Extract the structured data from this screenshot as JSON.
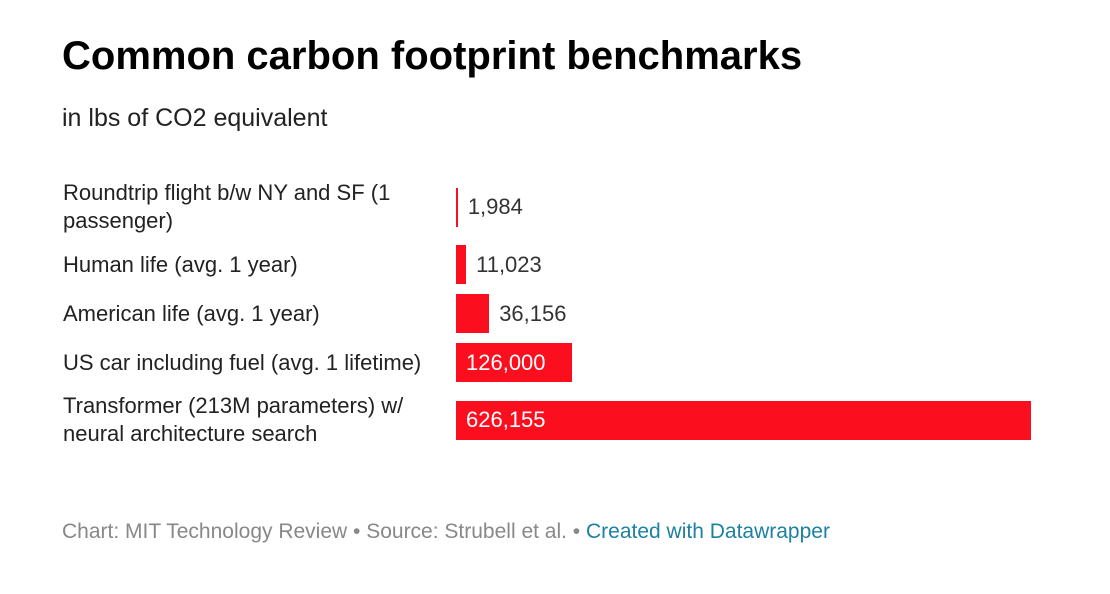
{
  "chart_data": {
    "type": "bar",
    "orientation": "horizontal",
    "title": "Common carbon footprint benchmarks",
    "subtitle": "in lbs of CO2 equivalent",
    "categories": [
      "Roundtrip flight b/w NY and SF (1 passenger)",
      "Human life (avg. 1 year)",
      "American life (avg. 1 year)",
      "US car including fuel (avg. 1 lifetime)",
      "Transformer (213M parameters) w/ neural architecture search"
    ],
    "values": [
      1984,
      11023,
      36156,
      126000,
      626155
    ],
    "value_labels": [
      "1,984",
      "11,023",
      "36,156",
      "126,000",
      "626,155"
    ],
    "color": "#fb0f1f",
    "footer": {
      "notes": "Chart: MIT Technology Review • Source: Strubell et al. •",
      "link": "Created with Datawrapper"
    }
  }
}
